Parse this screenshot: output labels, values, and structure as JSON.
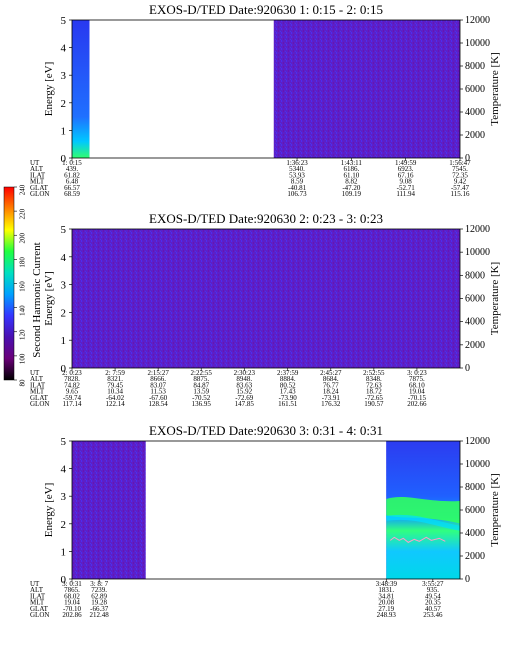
{
  "chart_data": [
    {
      "type": "heatmap",
      "title": "EXOS-D/TED   Date:920630  1: 0:15 - 2: 0:15",
      "ylabel": "Energy [eV]",
      "y2label": "Temperature [K]",
      "ylim": [
        0,
        5
      ],
      "y2lim": [
        0,
        12000
      ],
      "yticks": [
        "0",
        "1",
        "2",
        "3",
        "4",
        "5"
      ],
      "y2ticks": [
        "0",
        "2000",
        "4000",
        "6000",
        "8000",
        "10000",
        "12000"
      ],
      "coverage": [
        [
          0,
          0.045
        ],
        [
          0.52,
          1.0
        ]
      ],
      "orbit": {
        "labels": [
          "UT",
          "ALT",
          "ILAT",
          "MLT",
          "GLAT",
          "GLON"
        ],
        "columns": [
          {
            "pos": 0.0,
            "values": [
              "1: 0:15",
              "439.",
              "61.82",
              "6.48",
              "66.57",
              "68.59"
            ]
          },
          {
            "pos": 0.58,
            "values": [
              "1:36:23",
              "5340.",
              "53.93",
              "8.59",
              "-40.81",
              "106.73"
            ]
          },
          {
            "pos": 0.72,
            "values": [
              "1:43:11",
              "6186.",
              "61.10",
              "8.82",
              "-47.20",
              "109.19"
            ]
          },
          {
            "pos": 0.86,
            "values": [
              "1:49:59",
              "6923.",
              "67.16",
              "9.08",
              "-52.71",
              "111.94"
            ]
          },
          {
            "pos": 1.0,
            "values": [
              "1:56:47",
              "7545.",
              "72.35",
              "9.42",
              "-57.47",
              "115.16"
            ]
          }
        ]
      }
    },
    {
      "type": "heatmap",
      "title": "EXOS-D/TED   Date:920630  2: 0:23 - 3: 0:23",
      "ylabel": "Energy [eV]",
      "y2label": "Temperature [K]",
      "ylim": [
        0,
        5
      ],
      "y2lim": [
        0,
        12000
      ],
      "yticks": [
        "0",
        "1",
        "2",
        "3",
        "4",
        "5"
      ],
      "y2ticks": [
        "0",
        "2000",
        "4000",
        "6000",
        "8000",
        "10000",
        "12000"
      ],
      "coverage": [
        [
          0,
          1.0
        ]
      ],
      "orbit": {
        "labels": [
          "UT",
          "ALT",
          "ILAT",
          "MLT",
          "GLAT",
          "GLON"
        ],
        "columns": [
          {
            "pos": 0.0,
            "values": [
              "2: 0:23",
              "7828.",
              "74.82",
              "9.65",
              "-59.74",
              "117.14"
            ]
          },
          {
            "pos": 0.111,
            "values": [
              "2: 7:59",
              "8321.",
              "79.45",
              "10.34",
              "-64.02",
              "122.14"
            ]
          },
          {
            "pos": 0.222,
            "values": [
              "2:15:27",
              "8666.",
              "83.07",
              "11.53",
              "-67.60",
              "128.54"
            ]
          },
          {
            "pos": 0.333,
            "values": [
              "2:22:55",
              "8875.",
              "84.87",
              "13.59",
              "-70.52",
              "136.95"
            ]
          },
          {
            "pos": 0.444,
            "values": [
              "2:30:23",
              "8948.",
              "83.63",
              "15.92",
              "-72.69",
              "147.85"
            ]
          },
          {
            "pos": 0.556,
            "values": [
              "2:37:59",
              "8884.",
              "80.52",
              "17.43",
              "-73.90",
              "161.51"
            ]
          },
          {
            "pos": 0.667,
            "values": [
              "2:45:27",
              "8684.",
              "76.77",
              "18.24",
              "-73.91",
              "176.32"
            ]
          },
          {
            "pos": 0.778,
            "values": [
              "2:52:55",
              "8348.",
              "72.63",
              "18.72",
              "-72.65",
              "190.57"
            ]
          },
          {
            "pos": 0.889,
            "values": [
              "3: 0:23",
              "7875.",
              "68.10",
              "19.04",
              "-70.15",
              "202.66"
            ]
          }
        ]
      }
    },
    {
      "type": "heatmap",
      "title": "EXOS-D/TED   Date:920630  3: 0:31 - 4: 0:31",
      "ylabel": "Energy [eV]",
      "y2label": "Temperature [K]",
      "ylim": [
        0,
        5
      ],
      "y2lim": [
        0,
        12000
      ],
      "yticks": [
        "0",
        "1",
        "2",
        "3",
        "4",
        "5"
      ],
      "y2ticks": [
        "0",
        "2000",
        "4000",
        "6000",
        "8000",
        "10000",
        "12000"
      ],
      "coverage": [
        [
          0,
          0.19
        ],
        [
          0.81,
          1.0
        ]
      ],
      "orbit": {
        "labels": [
          "UT",
          "ALT",
          "ILAT",
          "MLT",
          "GLAT",
          "GLON"
        ],
        "columns": [
          {
            "pos": 0.0,
            "values": [
              "3: 0:31",
              "7865.",
              "68.02",
              "19.04",
              "-70.10",
              "202.86"
            ]
          },
          {
            "pos": 0.07,
            "values": [
              "3: 8: 7",
              "7239.",
              "62.89",
              "19.28",
              "-66.37",
              "212.48"
            ]
          },
          {
            "pos": 0.81,
            "values": [
              "3:48:39",
              "1831.",
              "34.81",
              "20.08",
              "27.19",
              "248.93"
            ]
          },
          {
            "pos": 0.93,
            "values": [
              "3:55:27",
              "935.",
              "49.54",
              "20.35",
              "40.57",
              "253.46"
            ]
          }
        ]
      }
    }
  ],
  "colorbar": {
    "label": "Second Harmonic Current",
    "ticks": [
      "80",
      "100",
      "120",
      "140",
      "160",
      "180",
      "200",
      "220",
      "240"
    ],
    "range": [
      80,
      240
    ],
    "colors": [
      "#000000",
      "#6a0078",
      "#4a10b0",
      "#3535ff",
      "#00a0ff",
      "#00e0c0",
      "#20ff40",
      "#ffff00",
      "#ff8000",
      "#ff0000"
    ]
  }
}
